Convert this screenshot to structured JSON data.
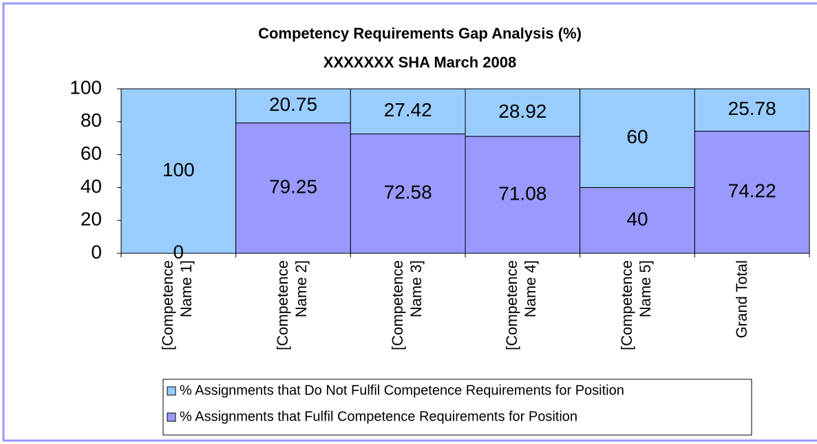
{
  "chart_data": {
    "type": "stacked_bar",
    "title": "Competency Requirements Gap Analysis (%)",
    "subtitle": "XXXXXXX SHA March 2008",
    "categories": [
      "[Competence Name 1]",
      "[Competence Name 2]",
      "[Competence Name 3]",
      "[Competence Name 4]",
      "[Competence Name 5]",
      "Grand Total"
    ],
    "series": [
      {
        "name": "% Assignments that Fulfil Competence Requirements for Position",
        "color": "#9999ff",
        "values": [
          0,
          79.25,
          72.58,
          71.08,
          40,
          74.22
        ]
      },
      {
        "name": "% Assignments that Do Not Fulfil Competence Requirements for Position",
        "color": "#99ccff",
        "values": [
          100,
          20.75,
          27.42,
          28.92,
          60,
          25.78
        ]
      }
    ],
    "ylim": [
      0,
      100
    ],
    "yticks": [
      0,
      20,
      40,
      60,
      80,
      100
    ],
    "grid": false,
    "legend": "bottom"
  }
}
